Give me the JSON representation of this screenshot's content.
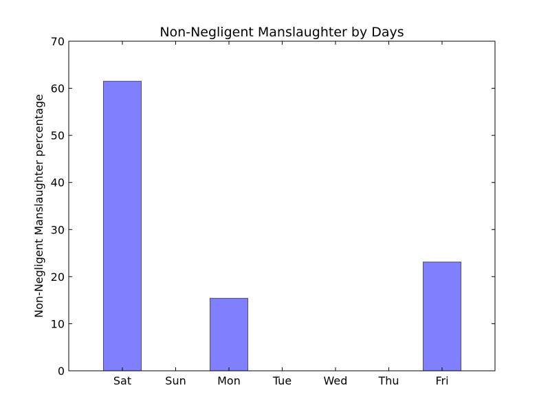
{
  "chart_data": {
    "type": "bar",
    "title": "Non-Negligent Manslaughter by Days",
    "xlabel": "",
    "ylabel": "Non-Negligent Manslaughter percentage",
    "categories": [
      "Sat",
      "Sun",
      "Mon",
      "Tue",
      "Wed",
      "Thu",
      "Fri"
    ],
    "values": [
      61.5,
      0,
      15.4,
      0,
      0,
      0,
      23.1
    ],
    "ylim": [
      0,
      70
    ],
    "yticks": [
      "0",
      "10",
      "20",
      "30",
      "40",
      "50",
      "60",
      "70"
    ],
    "grid": false,
    "bar_color": "#8080ff",
    "bar_edge_color": "#4d4d80"
  }
}
